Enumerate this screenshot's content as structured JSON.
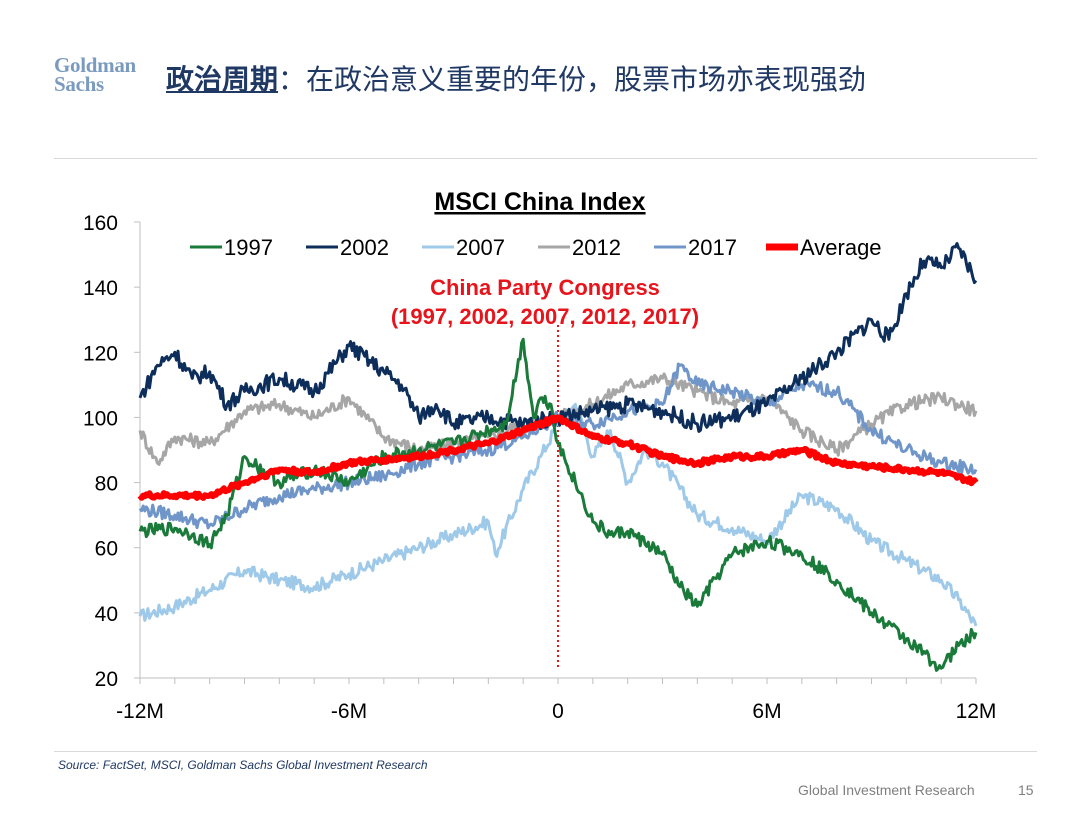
{
  "header": {
    "logo_line1": "Goldman",
    "logo_line2": "Sachs",
    "title_keyword": "政治周期",
    "title_rest": "：在政治意义重要的年份，股票市场亦表现强劲"
  },
  "footer": {
    "source": "Source: FactSet, MSCI, Goldman Sachs Global Investment Research",
    "brand_text": "Global Investment Research",
    "page_number": "15"
  },
  "colors": {
    "1997": "#1a7a3a",
    "2002": "#0d2e5a",
    "2007": "#9fc9e8",
    "2012": "#a6a6a6",
    "2017": "#7096c9",
    "Average": "#ff0000",
    "annotation": "#e8141b"
  },
  "chart_data": {
    "type": "line",
    "title": "MSCI China Index",
    "xlabel": "",
    "ylabel": "",
    "xlim": [
      -12,
      12
    ],
    "ylim": [
      20,
      160
    ],
    "x_ticks": [
      {
        "value": -12,
        "label": "-12M"
      },
      {
        "value": -6,
        "label": "-6M"
      },
      {
        "value": 0,
        "label": "0"
      },
      {
        "value": 6,
        "label": "6M"
      },
      {
        "value": 12,
        "label": "12M"
      }
    ],
    "y_ticks": [
      20,
      40,
      60,
      80,
      100,
      120,
      140,
      160
    ],
    "annotation": {
      "line1": "China Party Congress",
      "line2": "(1997, 2002, 2007, 2012, 2017)",
      "x": 0
    },
    "legend_position": "top",
    "series": [
      {
        "name": "1997",
        "x": [
          -12,
          -11,
          -10.5,
          -10,
          -9.5,
          -9,
          -8,
          -7,
          -6,
          -5,
          -4,
          -3,
          -2,
          -1.5,
          -1,
          -0.7,
          -0.5,
          -0.2,
          0,
          0.5,
          1,
          1.5,
          2,
          3,
          3.5,
          4,
          5,
          6,
          7,
          8,
          9,
          10,
          11,
          11.5,
          12
        ],
        "y": [
          65,
          66,
          64,
          61,
          70,
          88,
          80,
          84,
          80,
          88,
          90,
          92,
          96,
          98,
          124,
          100,
          106,
          104,
          92,
          80,
          68,
          64,
          65,
          58,
          48,
          42,
          58,
          62,
          58,
          50,
          40,
          32,
          23,
          30,
          34
        ]
      },
      {
        "name": "2002",
        "x": [
          -12,
          -11.5,
          -11,
          -10.5,
          -10,
          -9.5,
          -9,
          -8,
          -7,
          -6,
          -5,
          -4.5,
          -4,
          -3.5,
          -3,
          -2,
          -1,
          0,
          1,
          2,
          3,
          4,
          5,
          6,
          7,
          8,
          9,
          9.5,
          10,
          10.5,
          11,
          11.5,
          12
        ],
        "y": [
          106,
          116,
          120,
          112,
          114,
          104,
          108,
          112,
          108,
          122,
          114,
          110,
          100,
          104,
          98,
          100,
          98,
          100,
          102,
          104,
          102,
          98,
          100,
          104,
          112,
          120,
          130,
          124,
          138,
          148,
          146,
          152,
          142
        ]
      },
      {
        "name": "2007",
        "x": [
          -12,
          -11,
          -10,
          -9,
          -8,
          -7,
          -6,
          -5,
          -4,
          -3,
          -2,
          -1.8,
          -1,
          -0.5,
          0,
          0.5,
          1,
          1.5,
          2,
          2.5,
          3,
          4,
          5,
          6,
          7,
          8,
          9,
          10,
          11,
          11.5,
          12
        ],
        "y": [
          39,
          42,
          47,
          53,
          50,
          48,
          52,
          56,
          60,
          64,
          68,
          58,
          78,
          88,
          98,
          104,
          88,
          96,
          80,
          90,
          86,
          70,
          66,
          62,
          76,
          72,
          62,
          56,
          50,
          44,
          36
        ]
      },
      {
        "name": "2012",
        "x": [
          -12,
          -11.5,
          -11,
          -10,
          -9,
          -8,
          -7,
          -6,
          -5,
          -4,
          -3,
          -2,
          -1,
          0,
          1,
          2,
          3,
          4,
          5,
          6,
          7,
          8,
          9,
          10,
          11,
          12
        ],
        "y": [
          96,
          86,
          94,
          92,
          102,
          104,
          100,
          106,
          94,
          90,
          92,
          94,
          98,
          100,
          104,
          110,
          112,
          108,
          104,
          106,
          96,
          90,
          98,
          104,
          106,
          102
        ]
      },
      {
        "name": "2017",
        "x": [
          -12,
          -11,
          -10,
          -9,
          -8,
          -7,
          -6,
          -5,
          -4,
          -3,
          -2,
          -1,
          0,
          1,
          2,
          3,
          3.5,
          4,
          5,
          6,
          7,
          8,
          9,
          10,
          11,
          12
        ],
        "y": [
          72,
          70,
          67,
          72,
          76,
          78,
          80,
          82,
          86,
          88,
          90,
          94,
          100,
          98,
          102,
          104,
          116,
          110,
          108,
          104,
          110,
          108,
          96,
          90,
          86,
          84
        ]
      },
      {
        "name": "Average",
        "x": [
          -12,
          -11,
          -10,
          -9,
          -8,
          -7,
          -6,
          -5,
          -4,
          -3,
          -2,
          -1,
          0,
          1,
          2,
          3,
          4,
          5,
          6,
          7,
          8,
          9,
          10,
          11,
          12
        ],
        "y": [
          76,
          76,
          76,
          80,
          84,
          83,
          86,
          87,
          88,
          90,
          92,
          96,
          100,
          94,
          92,
          88,
          86,
          88,
          88,
          90,
          86,
          85,
          84,
          83,
          80
        ]
      }
    ]
  }
}
